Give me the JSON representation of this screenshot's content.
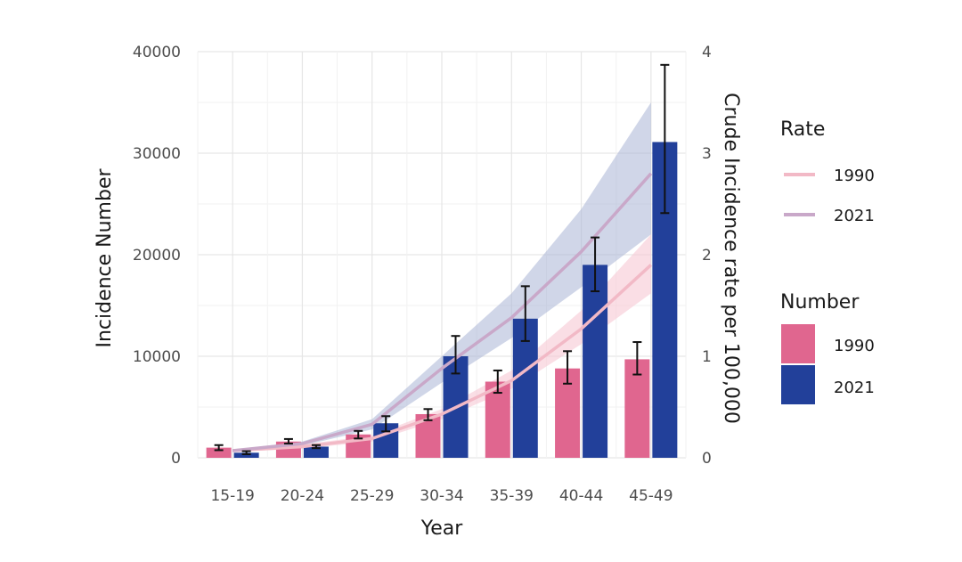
{
  "chart_data": {
    "type": "bar",
    "title": "",
    "xlabel": "Year",
    "ylabel": "Incidence Number",
    "y2label": "Crude Incidence rate per 100,000",
    "categories": [
      "15-19",
      "20-24",
      "25-29",
      "30-34",
      "35-39",
      "40-44",
      "45-49"
    ],
    "ylim": [
      0,
      40000
    ],
    "yticks": [
      "0",
      "10000",
      "20000",
      "30000",
      "40000"
    ],
    "y2lim": [
      0,
      4
    ],
    "y2ticks": [
      "0",
      "1",
      "2",
      "3",
      "4"
    ],
    "grid": true,
    "legend_position": "right",
    "bar_series": [
      {
        "name": "1990",
        "color": "#e0668f",
        "values": [
          1000,
          1600,
          2300,
          4300,
          7500,
          8800,
          9700
        ],
        "error_low": [
          750,
          1400,
          1900,
          3700,
          6400,
          7300,
          8200
        ],
        "error_high": [
          1250,
          1850,
          2650,
          4800,
          8600,
          10500,
          11400
        ]
      },
      {
        "name": "2021",
        "color": "#22409a",
        "values": [
          500,
          1100,
          3400,
          10000,
          13700,
          19000,
          31100
        ],
        "error_low": [
          350,
          950,
          2600,
          8300,
          11500,
          16400,
          24100
        ],
        "error_high": [
          650,
          1250,
          4100,
          12000,
          16900,
          21700,
          38700
        ]
      }
    ],
    "rate_series": [
      {
        "name": "1990",
        "color": "#f2b9c6",
        "band_color": "#f7c8d3",
        "values": [
          0.07,
          0.11,
          0.19,
          0.43,
          0.76,
          1.27,
          1.9
        ],
        "band_low": [
          0.06,
          0.09,
          0.16,
          0.38,
          0.68,
          1.12,
          1.62
        ],
        "band_high": [
          0.08,
          0.13,
          0.22,
          0.48,
          0.86,
          1.45,
          2.2
        ]
      },
      {
        "name": "2021",
        "color": "#c9a8c9",
        "band_color": "#a9b5d6",
        "values": [
          0.07,
          0.14,
          0.33,
          0.88,
          1.38,
          2.03,
          2.8
        ],
        "band_low": [
          0.06,
          0.12,
          0.28,
          0.74,
          1.18,
          1.68,
          2.2
        ],
        "band_high": [
          0.08,
          0.16,
          0.38,
          1.0,
          1.62,
          2.45,
          3.5
        ]
      }
    ],
    "legend": {
      "rate_title": "Rate",
      "number_title": "Number",
      "rate_items": [
        "1990",
        "2021"
      ],
      "number_items": [
        "1990",
        "2021"
      ]
    }
  }
}
